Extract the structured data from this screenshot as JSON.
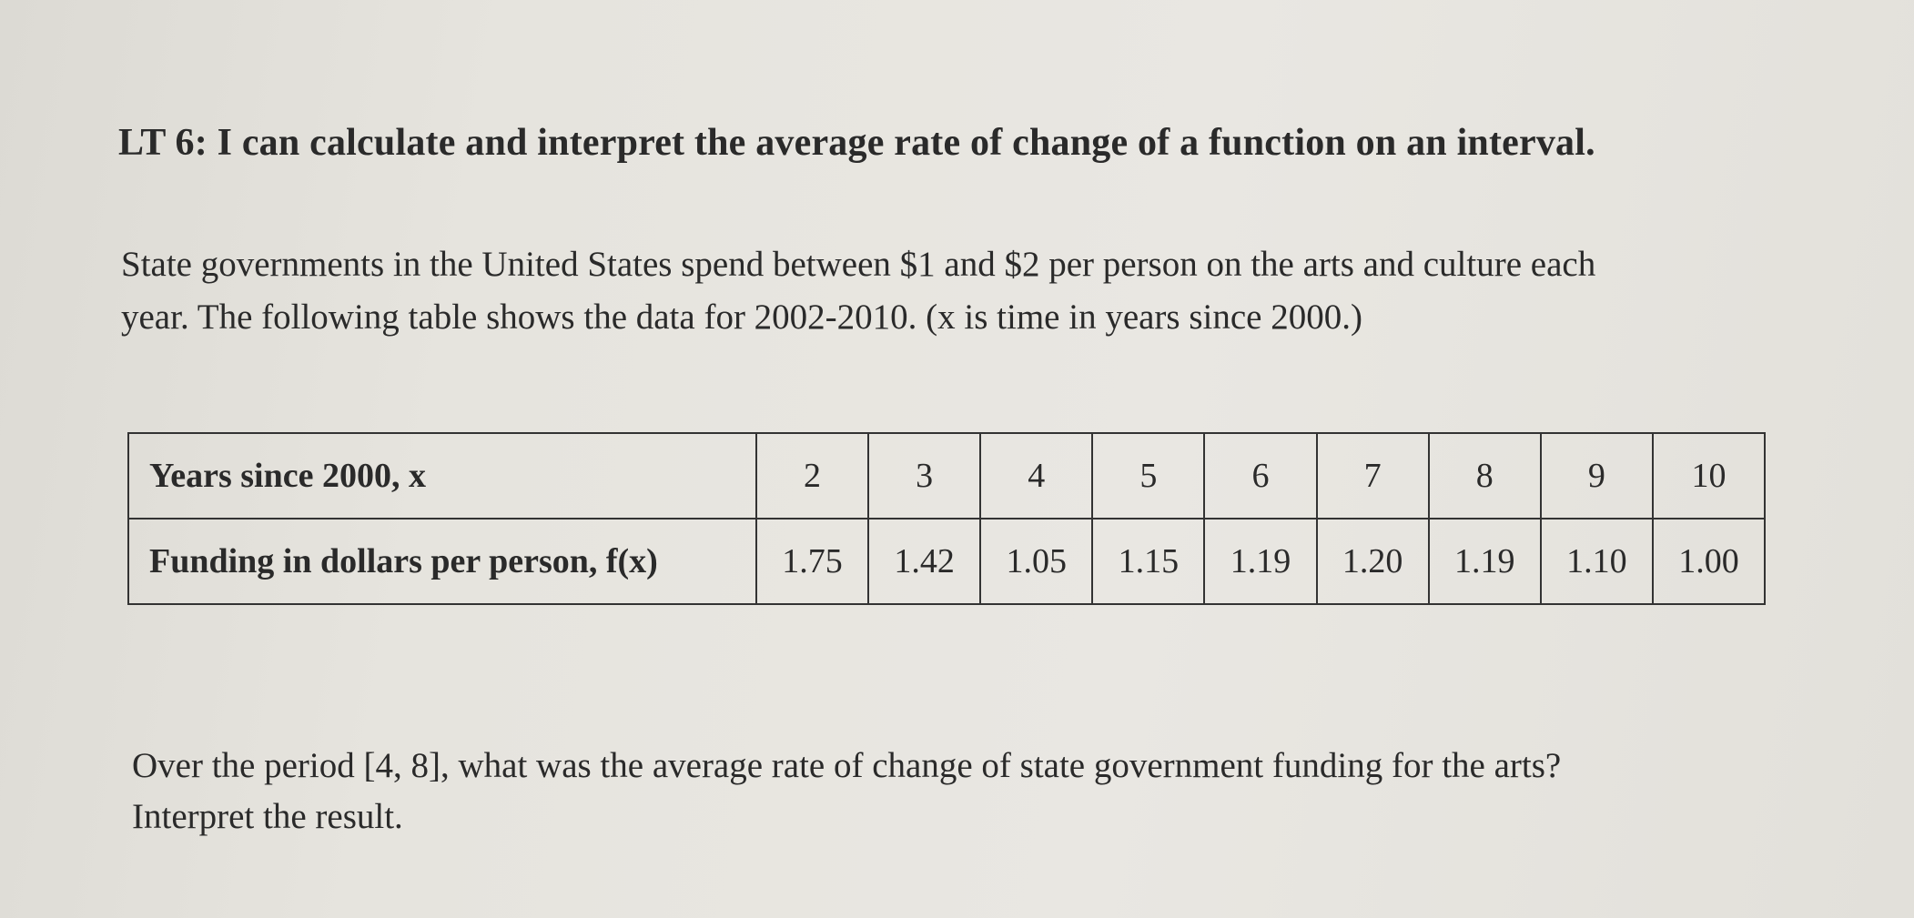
{
  "lt_heading": "LT 6:  I can calculate and interpret the average rate of change of a function on an interval.",
  "intro": {
    "line1": "State governments in the United States spend between $1 and $2 per person on the arts and culture each",
    "line2": "year.  The following table shows the data for 2002-2010.  (x is time in years since 2000.)"
  },
  "table": {
    "row_x_label": "Years since 2000, x",
    "row_f_label": "Funding in dollars per person, f(x)",
    "x_values": [
      "2",
      "3",
      "4",
      "5",
      "6",
      "7",
      "8",
      "9",
      "10"
    ],
    "f_values": [
      "1.75",
      "1.42",
      "1.05",
      "1.15",
      "1.19",
      "1.20",
      "1.19",
      "1.10",
      "1.00"
    ]
  },
  "question": {
    "line1": "Over the period [4, 8], what was the average rate of change of state government funding for the arts?",
    "line2": "Interpret the result."
  }
}
